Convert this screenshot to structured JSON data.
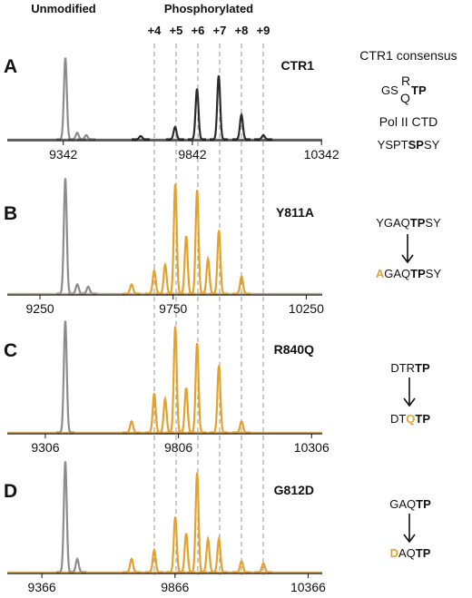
{
  "header": {
    "unmodified": "Unmodified",
    "phosphorylated": "Phosphorylated",
    "states": [
      "+4",
      "+5",
      "+6",
      "+7",
      "+8",
      "+9"
    ]
  },
  "chart_data": [
    {
      "type": "spectrum",
      "panel": "A",
      "label": "CTR1",
      "xlim": [
        9125,
        10345
      ],
      "xticks": [
        9342,
        9842,
        10342
      ],
      "ylim": [
        0,
        100
      ],
      "series": [
        {
          "color": "#8c8c8c",
          "x": [
            9350,
            9396,
            9431
          ],
          "values": [
            100,
            8,
            5
          ]
        },
        {
          "color": "#2b2b2b",
          "x": [
            9642,
            9775,
            9860,
            9944,
            10032,
            10117
          ],
          "values": [
            4,
            15,
            62,
            78,
            30,
            5
          ]
        }
      ]
    },
    {
      "type": "spectrum",
      "panel": "B",
      "label": "Y811A",
      "xlim": [
        9127,
        10310
      ],
      "xticks": [
        9250,
        9750,
        10250
      ],
      "ylim": [
        0,
        100
      ],
      "series": [
        {
          "color": "#8c8c8c",
          "x": [
            9345,
            9390,
            9431
          ],
          "values": [
            100,
            8,
            6
          ]
        },
        {
          "color": "#e3a12f",
          "x": [
            9594,
            9679,
            9720,
            9758,
            9799,
            9840,
            9881,
            9922,
            10007
          ],
          "values": [
            8,
            20,
            25,
            95,
            50,
            90,
            30,
            55,
            15
          ]
        }
      ]
    },
    {
      "type": "spectrum",
      "panel": "C",
      "label": "R840Q",
      "xlim": [
        9163,
        10346
      ],
      "xticks": [
        9306,
        9806,
        10306
      ],
      "ylim": [
        0,
        100
      ],
      "series": [
        {
          "color": "#8c8c8c",
          "x": [
            9381
          ],
          "values": [
            100
          ]
        },
        {
          "color": "#e3a12f",
          "x": [
            9630,
            9715,
            9756,
            9794,
            9835,
            9876,
            9958,
            10043
          ],
          "values": [
            10,
            35,
            30,
            95,
            40,
            80,
            60,
            10
          ]
        }
      ]
    },
    {
      "type": "spectrum",
      "panel": "D",
      "label": "G812D",
      "xlim": [
        9236,
        10419
      ],
      "xticks": [
        9366,
        9866,
        10366
      ],
      "ylim": [
        0,
        100
      ],
      "series": [
        {
          "color": "#8c8c8c",
          "x": [
            9454,
            9499
          ],
          "values": [
            100,
            12
          ]
        },
        {
          "color": "#e3a12f",
          "x": [
            9703,
            9788,
            9867,
            9908,
            9949,
            9990,
            10031,
            10116,
            10198
          ],
          "values": [
            12,
            20,
            50,
            35,
            90,
            30,
            30,
            10,
            8
          ]
        }
      ]
    }
  ],
  "annotations": {
    "a": {
      "title": "CTR1 consensus",
      "consensus": [
        "GS",
        "R",
        "Q",
        "TP"
      ],
      "ctd_title": "Pol II CTD",
      "ctd": [
        "YSPT",
        "SP",
        "SY"
      ]
    },
    "b": {
      "from": [
        "YGAQ",
        "TP",
        "SY"
      ],
      "to": [
        "A",
        "GAQ",
        "TP",
        "SY"
      ]
    },
    "c": {
      "from": [
        "DTR",
        "TP"
      ],
      "to": [
        "DT",
        "Q",
        "TP"
      ]
    },
    "d": {
      "from": [
        "GAQ",
        "TP"
      ],
      "to": [
        "D",
        "AQ",
        "TP"
      ]
    }
  }
}
